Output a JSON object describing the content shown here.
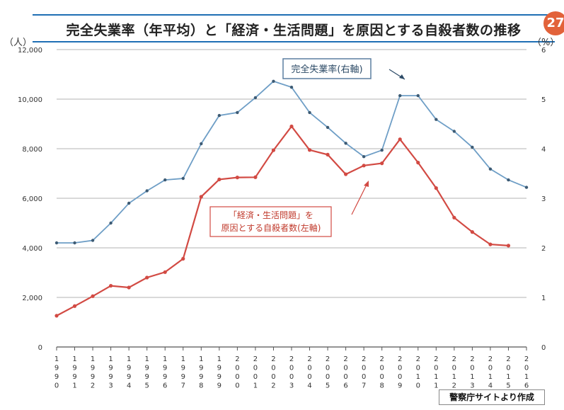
{
  "page": {
    "title": "完全失業率（年平均）と「経済・生活問題」を原因とする自殺者数の推移",
    "page_number": "27",
    "source_note": "警察庁サイトより作成"
  },
  "colors": {
    "unemployment": "#6e9ec6",
    "suicides": "#d24a43",
    "title_rule": "#1f6fb4",
    "badge": "#e2623a"
  },
  "chart_data": {
    "type": "line",
    "x": [
      "1990",
      "1991",
      "1992",
      "1993",
      "1994",
      "1995",
      "1996",
      "1997",
      "1998",
      "1999",
      "2000",
      "2001",
      "2002",
      "2003",
      "2004",
      "2005",
      "2006",
      "2007",
      "2008",
      "2009",
      "2010",
      "2011",
      "2012",
      "2013",
      "2014",
      "2015",
      "2016"
    ],
    "left_axis": {
      "unit": "（人）",
      "ylim": [
        0,
        12000
      ],
      "ticks": [
        "0",
        "2,000",
        "4,000",
        "6,000",
        "8,000",
        "10,000",
        "12,000"
      ]
    },
    "right_axis": {
      "unit": "（%）",
      "ylim": [
        0,
        6
      ],
      "ticks": [
        "0",
        "1",
        "2",
        "3",
        "4",
        "5",
        "6"
      ]
    },
    "grid": true,
    "series": [
      {
        "name": "完全失業率(右軸)",
        "axis": "right",
        "values": [
          2.1,
          2.1,
          2.15,
          2.5,
          2.9,
          3.15,
          3.37,
          3.4,
          4.1,
          4.67,
          4.73,
          5.03,
          5.36,
          5.24,
          4.73,
          4.43,
          4.11,
          3.84,
          3.97,
          5.07,
          5.07,
          4.59,
          4.35,
          4.03,
          3.59,
          3.37,
          3.22
        ]
      },
      {
        "name": "「経済・生活問題」を原因とする自殺者数(左軸)",
        "axis": "left",
        "values": [
          1260,
          1650,
          2050,
          2470,
          2400,
          2800,
          3020,
          3560,
          6060,
          6760,
          6840,
          6850,
          7940,
          8900,
          7950,
          7760,
          6970,
          7320,
          7410,
          8380,
          7440,
          6410,
          5220,
          4640,
          4140,
          4090,
          null
        ]
      }
    ],
    "annotations": [
      {
        "label": "完全失業率(右軸)"
      },
      {
        "label_line1": "「経済・生活問題」を",
        "label_line2": "原因とする自殺者数(左軸)"
      }
    ]
  }
}
